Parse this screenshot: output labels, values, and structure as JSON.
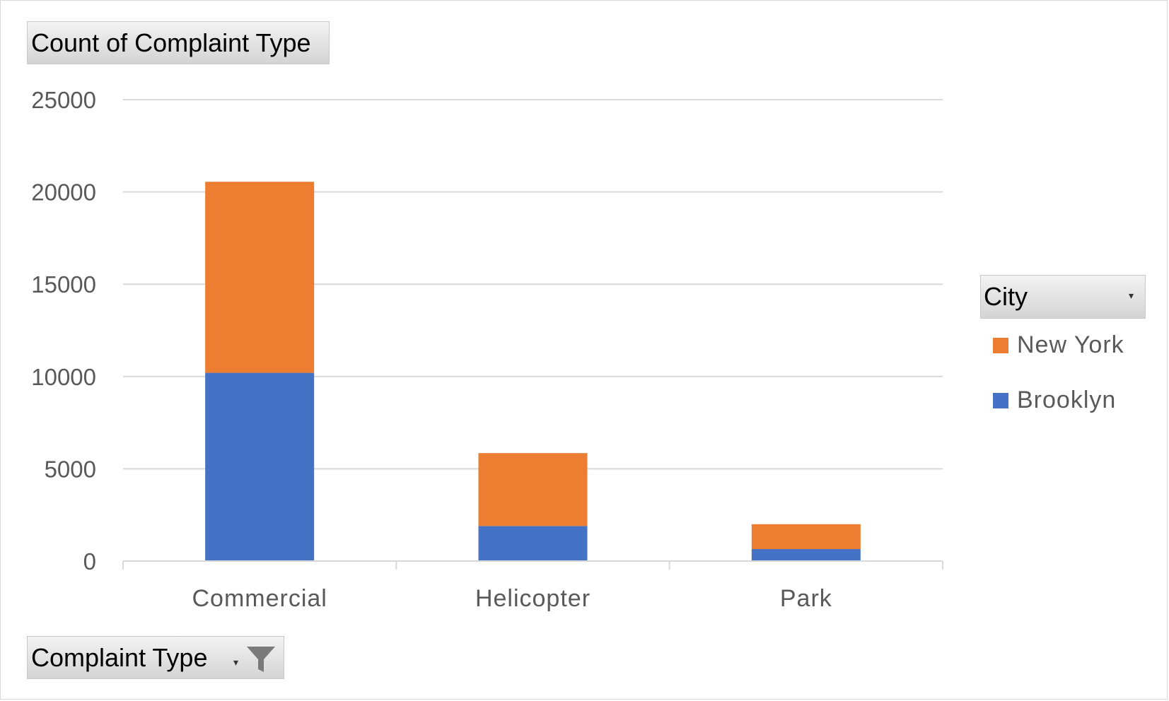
{
  "value_field": {
    "label": "Count of Complaint Type"
  },
  "axis_field": {
    "label": "Complaint Type"
  },
  "legend_field": {
    "label": "City"
  },
  "chart_data": {
    "type": "bar",
    "stacked": true,
    "categories": [
      "Commercial",
      "Helicopter",
      "Park"
    ],
    "series": [
      {
        "name": "Brooklyn",
        "values": [
          10200,
          1900,
          650
        ],
        "color": "#4472C4"
      },
      {
        "name": "New York",
        "values": [
          10350,
          3950,
          1350
        ],
        "color": "#ED7D31"
      }
    ],
    "ylim": [
      0,
      25000
    ],
    "yticks": [
      0,
      5000,
      10000,
      15000,
      20000,
      25000
    ],
    "grid": true,
    "legend_position": "right",
    "legend_order": [
      "New York",
      "Brooklyn"
    ]
  }
}
